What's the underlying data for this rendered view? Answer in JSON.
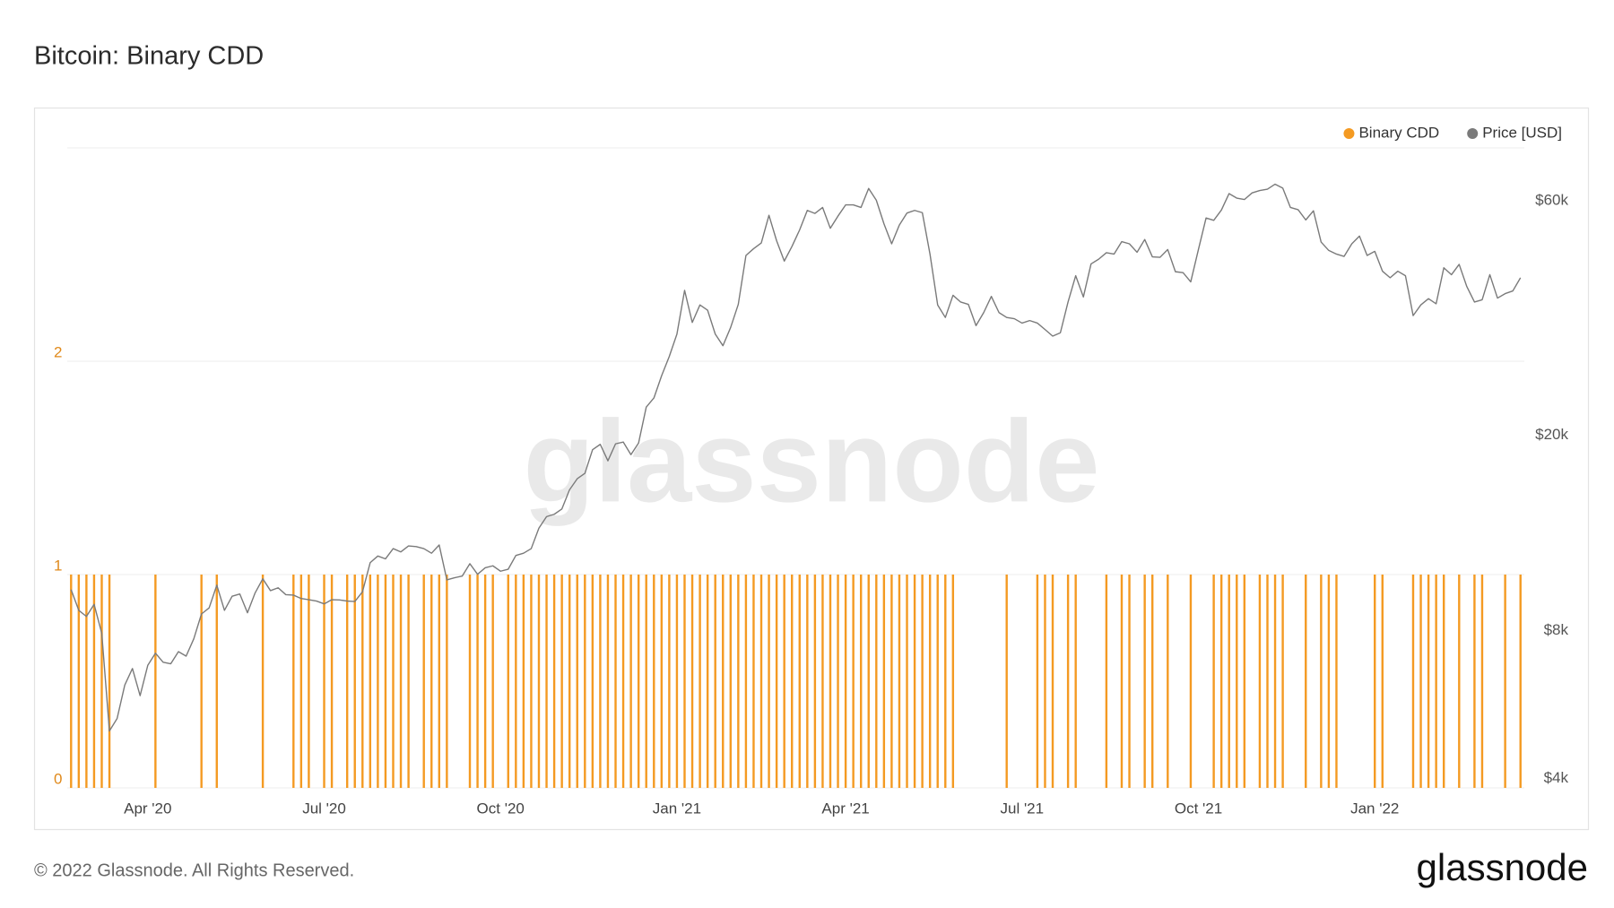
{
  "chart_data": {
    "type": "bar",
    "title": "Bitcoin: Binary CDD",
    "watermark": "glassnode",
    "legend": "upper right",
    "grid": true,
    "ylim": [
      0,
      3
    ],
    "yticks": [
      0,
      1,
      2
    ],
    "y2lim": [
      3830,
      76800
    ],
    "y2scale": "log",
    "y2ticks": [
      {
        "value": 4000,
        "label": "$4k"
      },
      {
        "value": 8000,
        "label": "$8k"
      },
      {
        "value": 20000,
        "label": "$20k"
      },
      {
        "value": 60000,
        "label": "$60k"
      }
    ],
    "categories": [
      null,
      null,
      null,
      null,
      null,
      null,
      null,
      null,
      null,
      null,
      "Apr '20",
      null,
      null,
      null,
      null,
      null,
      null,
      null,
      null,
      null,
      null,
      null,
      null,
      null,
      null,
      null,
      null,
      null,
      null,
      null,
      null,
      null,
      null,
      "Jul '20",
      null,
      null,
      null,
      null,
      null,
      null,
      null,
      null,
      null,
      null,
      null,
      null,
      null,
      null,
      null,
      null,
      null,
      null,
      null,
      null,
      null,
      null,
      "Oct '20",
      null,
      null,
      null,
      null,
      null,
      null,
      null,
      null,
      null,
      null,
      null,
      null,
      null,
      null,
      null,
      null,
      null,
      null,
      null,
      null,
      null,
      null,
      "Jan '21",
      null,
      null,
      null,
      null,
      null,
      null,
      null,
      null,
      null,
      null,
      null,
      null,
      null,
      null,
      null,
      null,
      null,
      null,
      null,
      null,
      null,
      "Apr '21",
      null,
      null,
      null,
      null,
      null,
      null,
      null,
      null,
      null,
      null,
      null,
      null,
      null,
      null,
      null,
      null,
      null,
      null,
      null,
      null,
      null,
      null,
      "Jul '21",
      null,
      null,
      null,
      null,
      null,
      null,
      null,
      null,
      null,
      null,
      null,
      null,
      null,
      null,
      null,
      null,
      null,
      null,
      null,
      null,
      null,
      null,
      "Oct '21",
      null,
      null,
      null,
      null,
      null,
      null,
      null,
      null,
      null,
      null,
      null,
      null,
      null,
      null,
      null,
      null,
      null,
      null,
      null,
      null,
      null,
      null,
      "Jan '22",
      null,
      null,
      null,
      null,
      null,
      null,
      null,
      null,
      null,
      null,
      null,
      null,
      null,
      null,
      null,
      null,
      null,
      null,
      null
    ],
    "series": [
      {
        "name": "Binary CDD",
        "type": "bar",
        "color": "#f49a22",
        "values": [
          1,
          1,
          1,
          1,
          1,
          1,
          0,
          0,
          0,
          0,
          0,
          1,
          0,
          0,
          0,
          0,
          0,
          1,
          0,
          1,
          0,
          0,
          0,
          0,
          0,
          1,
          0,
          0,
          0,
          1,
          1,
          1,
          0,
          1,
          1,
          0,
          1,
          1,
          1,
          1,
          1,
          1,
          1,
          1,
          1,
          0,
          1,
          1,
          1,
          1,
          0,
          0,
          1,
          1,
          1,
          1,
          0,
          1,
          1,
          1,
          1,
          1,
          1,
          1,
          1,
          1,
          1,
          1,
          1,
          1,
          1,
          1,
          1,
          1,
          1,
          1,
          1,
          1,
          1,
          1,
          1,
          1,
          1,
          1,
          1,
          1,
          1,
          1,
          1,
          1,
          1,
          1,
          1,
          1,
          1,
          1,
          1,
          1,
          1,
          1,
          1,
          1,
          1,
          1,
          1,
          1,
          1,
          1,
          1,
          1,
          1,
          1,
          1,
          1,
          1,
          1,
          0,
          0,
          0,
          0,
          0,
          0,
          1,
          0,
          0,
          0,
          1,
          1,
          1,
          0,
          1,
          1,
          0,
          0,
          0,
          1,
          0,
          1,
          1,
          0,
          1,
          1,
          0,
          1,
          0,
          0,
          1,
          0,
          0,
          1,
          1,
          1,
          1,
          1,
          0,
          1,
          1,
          1,
          1,
          0,
          0,
          1,
          0,
          1,
          1,
          1,
          0,
          0,
          0,
          0,
          1,
          1,
          0,
          0,
          0,
          1,
          1,
          1,
          1,
          1,
          0,
          1,
          0,
          1,
          1,
          0,
          0,
          1,
          0,
          1
        ]
      },
      {
        "name": "Price [USD]",
        "type": "line",
        "axis": "y2",
        "color": "#7a7a7a",
        "values": [
          9700,
          8800,
          8550,
          9050,
          7900,
          5000,
          5300,
          6200,
          6700,
          5900,
          6800,
          7200,
          6900,
          6850,
          7250,
          7100,
          7700,
          8650,
          8900,
          9900,
          8800,
          9400,
          9500,
          8700,
          9550,
          10200,
          9650,
          9780,
          9470,
          9450,
          9300,
          9250,
          9190,
          9070,
          9250,
          9240,
          9190,
          9170,
          9600,
          11000,
          11350,
          11200,
          11750,
          11570,
          11900,
          11860,
          11750,
          11500,
          11950,
          10150,
          10250,
          10330,
          10950,
          10420,
          10740,
          10840,
          10570,
          10670,
          11380,
          11500,
          11750,
          12930,
          13650,
          13800,
          14150,
          15480,
          16300,
          16720,
          18680,
          19150,
          17730,
          19200,
          19360,
          18250,
          19270,
          22800,
          23800,
          26400,
          28900,
          32100,
          39400,
          33900,
          36800,
          35900,
          32100,
          30400,
          33100,
          36900,
          46400,
          47900,
          49200,
          56000,
          49700,
          45200,
          48400,
          52300,
          57300,
          56500,
          58100,
          52700,
          55800,
          58800,
          58800,
          58100,
          63500,
          60100,
          53800,
          49000,
          53500,
          56600,
          57300,
          56700,
          46700,
          36800,
          34700,
          38500,
          37300,
          36900,
          33400,
          35500,
          38300,
          35500,
          34700,
          34500,
          33800,
          34200,
          33800,
          32800,
          31800,
          32300,
          37300,
          42200,
          38200,
          44600,
          45600,
          47000,
          46700,
          49500,
          49000,
          47100,
          50000,
          46100,
          46000,
          47700,
          43000,
          42800,
          41000,
          47700,
          55300,
          54700,
          57400,
          62000,
          60700,
          60300,
          62200,
          62900,
          63300,
          64800,
          63600,
          58100,
          57500,
          54800,
          57200,
          49400,
          47500,
          46700,
          46200,
          49000,
          50800,
          46400,
          47300,
          43100,
          41800,
          43100,
          42200,
          35000,
          36800,
          37900,
          37000,
          43800,
          42400,
          44500,
          40100,
          37300,
          37700,
          42400,
          38000,
          38800,
          39300,
          41800
        ]
      }
    ]
  },
  "footer": {
    "copyright": "© 2022 Glassnode. All Rights Reserved.",
    "logo": "glassnode"
  }
}
